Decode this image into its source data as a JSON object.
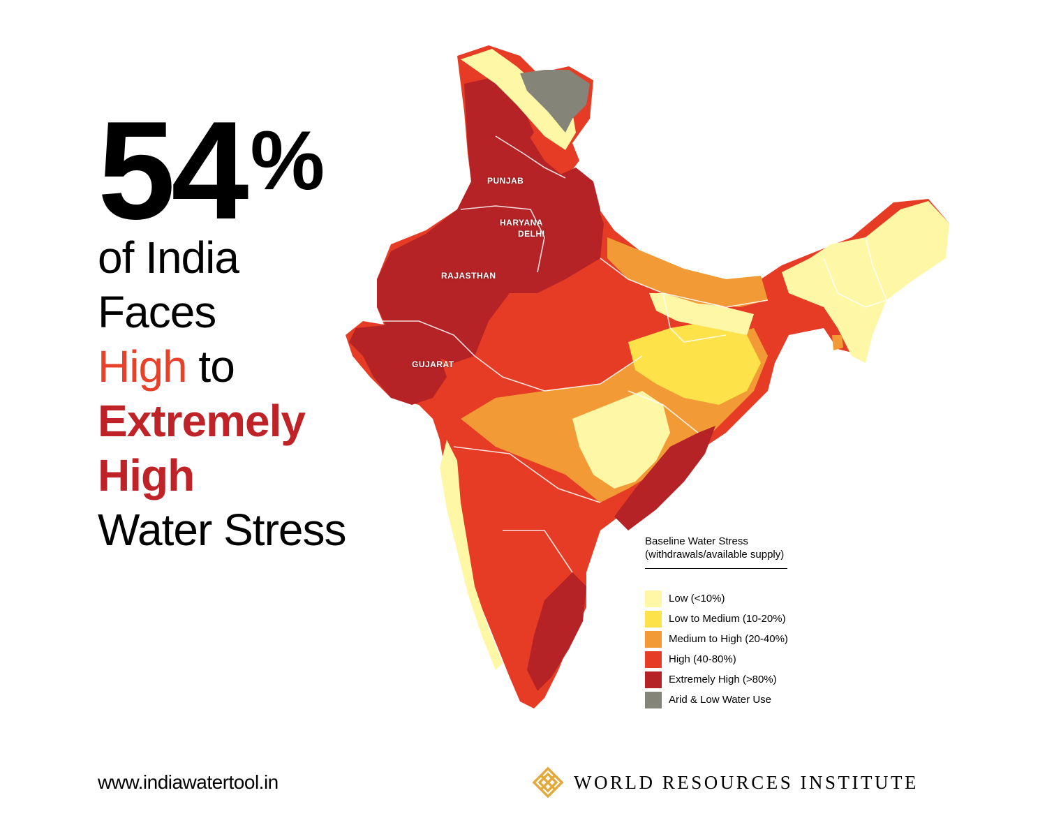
{
  "headline": {
    "number": "54",
    "percent_sign": "%",
    "line1": "of India",
    "line2": "Faces",
    "high": "High",
    "to": "to",
    "extremely": "Extremely",
    "high2": "High",
    "water_stress": "Water Stress"
  },
  "map_labels": {
    "punjab": "PUNJAB",
    "haryana": "HARYANA",
    "delhi": "DELHI",
    "rajasthan": "RAJASTHAN",
    "gujarat": "GUJARAT"
  },
  "legend": {
    "title_line1": "Baseline Water Stress",
    "title_line2": "(withdrawals/available supply)",
    "items": [
      {
        "label": "Low (<10%)",
        "color": "#fdf7a6"
      },
      {
        "label": "Low to Medium (10-20%)",
        "color": "#fde24a"
      },
      {
        "label": "Medium to High (20-40%)",
        "color": "#f29a36"
      },
      {
        "label": "High (40-80%)",
        "color": "#e63c25"
      },
      {
        "label": "Extremely High (>80%)",
        "color": "#b52326"
      },
      {
        "label": "Arid & Low Water Use",
        "color": "#858478"
      }
    ]
  },
  "footer": {
    "url": "www.indiawatertool.in",
    "org": "WORLD RESOURCES INSTITUTE",
    "logo_color": "#e3a93b"
  }
}
